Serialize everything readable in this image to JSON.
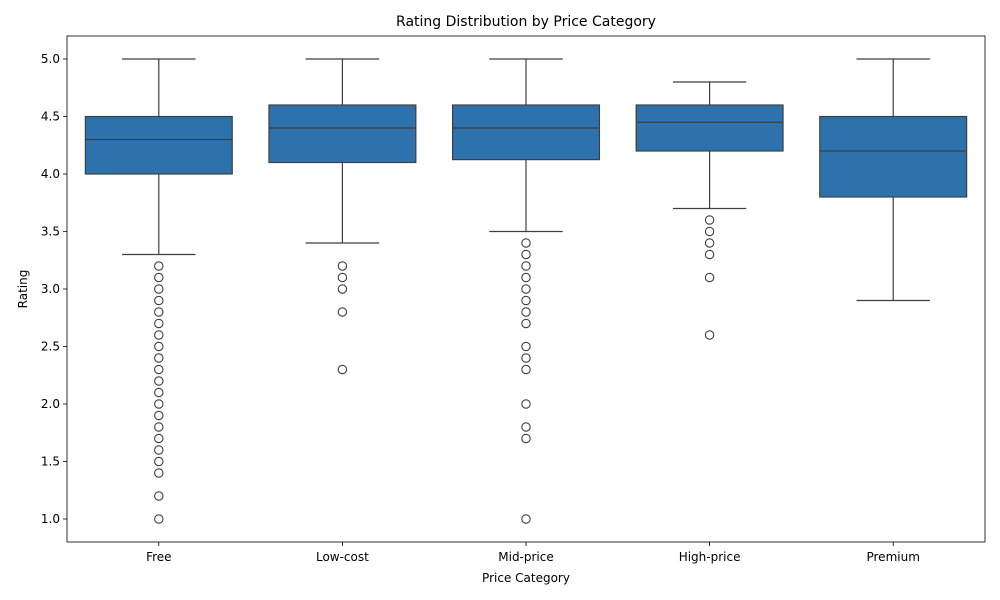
{
  "chart_data": {
    "type": "box",
    "title": "Rating Distribution by Price Category",
    "xlabel": "Price Category",
    "ylabel": "Rating",
    "categories": [
      "Free",
      "Low-cost",
      "Mid-price",
      "High-price",
      "Premium"
    ],
    "ylim": [
      0.8,
      5.2
    ],
    "yticks": [
      1.0,
      1.5,
      2.0,
      2.5,
      3.0,
      3.5,
      4.0,
      4.5,
      5.0
    ],
    "ytick_labels": [
      "1.0",
      "1.5",
      "2.0",
      "2.5",
      "3.0",
      "3.5",
      "4.0",
      "4.5",
      "5.0"
    ],
    "grid": false,
    "box_color": "#2e72ad",
    "line_color": "#3f3f3f",
    "boxes": [
      {
        "category": "Free",
        "whisker_low": 3.3,
        "q1": 4.0,
        "median": 4.3,
        "q3": 4.5,
        "whisker_high": 5.0,
        "outliers": [
          3.2,
          3.1,
          3.0,
          2.9,
          2.8,
          2.7,
          2.6,
          2.5,
          2.4,
          2.3,
          2.2,
          2.1,
          2.0,
          1.9,
          1.8,
          1.7,
          1.6,
          1.5,
          1.4,
          1.2,
          1.0
        ]
      },
      {
        "category": "Low-cost",
        "whisker_low": 3.4,
        "q1": 4.1,
        "median": 4.4,
        "q3": 4.6,
        "whisker_high": 5.0,
        "outliers": [
          3.2,
          3.1,
          3.0,
          2.8,
          2.3
        ]
      },
      {
        "category": "Mid-price",
        "whisker_low": 3.5,
        "q1": 4.125,
        "median": 4.4,
        "q3": 4.6,
        "whisker_high": 5.0,
        "outliers": [
          3.4,
          3.3,
          3.2,
          3.1,
          3.0,
          2.9,
          2.8,
          2.7,
          2.5,
          2.4,
          2.3,
          2.0,
          1.8,
          1.7,
          1.0
        ]
      },
      {
        "category": "High-price",
        "whisker_low": 3.7,
        "q1": 4.2,
        "median": 4.45,
        "q3": 4.6,
        "whisker_high": 4.8,
        "outliers": [
          3.6,
          3.5,
          3.4,
          3.3,
          3.1,
          2.6
        ]
      },
      {
        "category": "Premium",
        "whisker_low": 2.9,
        "q1": 3.8,
        "median": 4.2,
        "q3": 4.5,
        "whisker_high": 5.0,
        "outliers": []
      }
    ]
  }
}
